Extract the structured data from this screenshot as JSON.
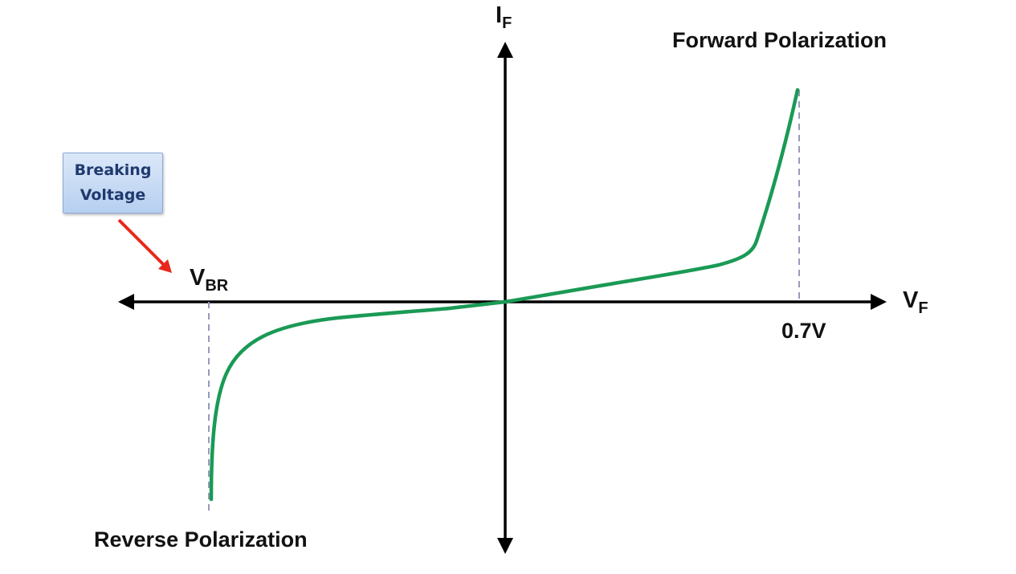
{
  "diagram": {
    "axis_x": {
      "symbol": "V",
      "subscript": "F"
    },
    "axis_y": {
      "symbol": "I",
      "subscript": "F"
    },
    "breakdown_label": {
      "symbol": "V",
      "subscript": "BR"
    },
    "forward_label": "Forward Polarization",
    "reverse_label": "Reverse Polarization",
    "threshold_label": "0.7V",
    "callout": "Breaking\nVoltage"
  },
  "colors": {
    "curve": "#1a9a55",
    "axes": "#000000",
    "arrow": "#e8281c",
    "guide": "#9999bb",
    "callout_text": "#1f3a6e"
  }
}
